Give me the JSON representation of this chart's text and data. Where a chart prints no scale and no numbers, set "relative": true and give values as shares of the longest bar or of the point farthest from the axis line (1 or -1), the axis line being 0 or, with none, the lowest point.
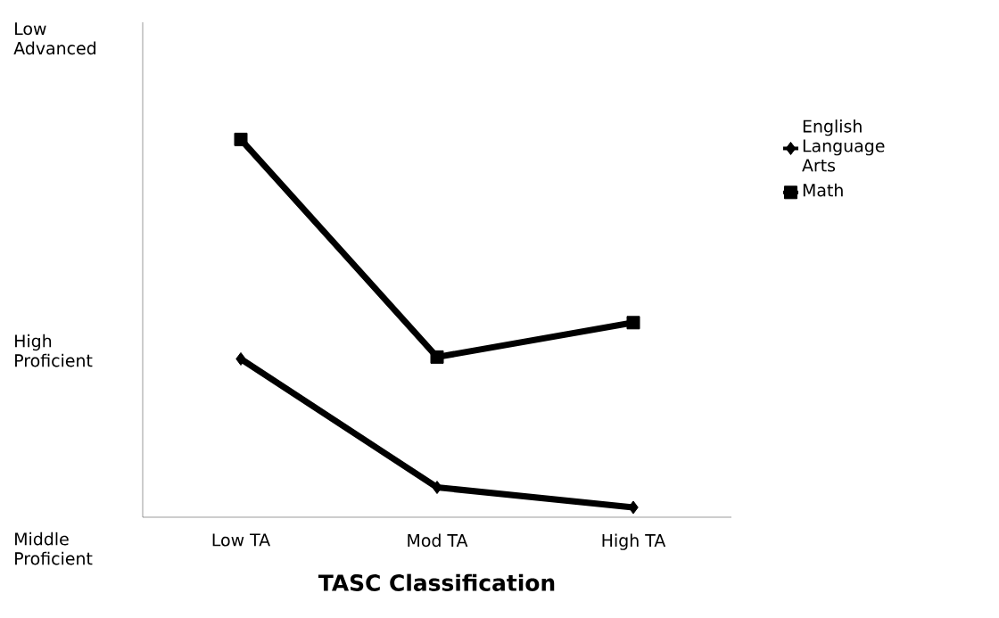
{
  "chart_data": {
    "type": "line",
    "relative": true,
    "xlabel": "TASC Classification",
    "categories": [
      "Low TA",
      "Mod TA",
      "High TA"
    ],
    "series": [
      {
        "name": "English Language Arts",
        "color": "#000000",
        "marker": "diamond",
        "values": [
          0.419,
          0.079,
          0.026
        ]
      },
      {
        "name": "Math",
        "color": "#000000",
        "marker": "square",
        "values": [
          1,
          0.424,
          0.515
        ]
      }
    ],
    "annotations": [
      "Low Advanced",
      "High Proficient",
      "Middle Proficient"
    ],
    "grid": false,
    "legend": "right",
    "line_style": "solid"
  }
}
